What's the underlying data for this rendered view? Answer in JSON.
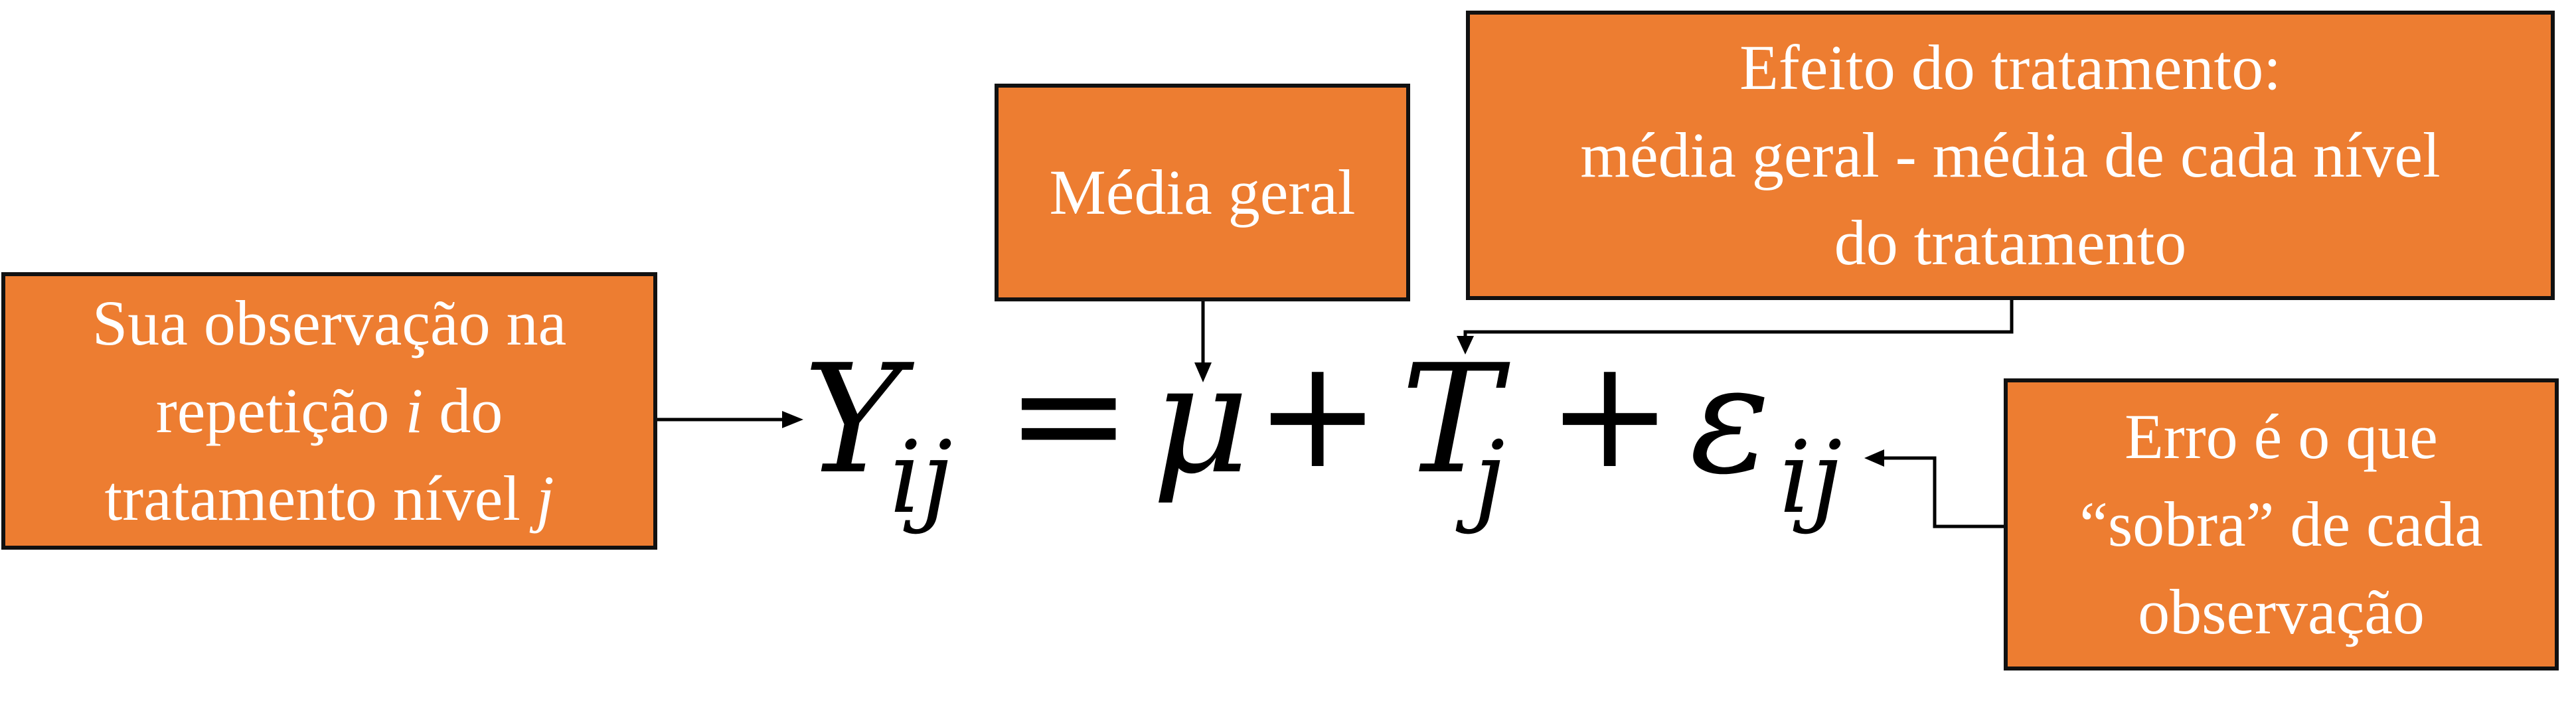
{
  "boxes": {
    "observation": {
      "line1": "Sua observação na",
      "line2_pre": "repetição ",
      "line2_var": "i",
      "line2_post": " do",
      "line3_pre": "tratamento nível ",
      "line3_var": "j"
    },
    "grand_mean": {
      "line1": "Média geral"
    },
    "treatment_effect": {
      "line1": "Efeito do tratamento:",
      "line2": "média geral - média de cada nível",
      "line3": "do tratamento"
    },
    "error": {
      "line1": "Erro é o que",
      "line2": "“sobra” de cada",
      "line3": "observação"
    }
  },
  "equation": {
    "Y": "Y",
    "Y_sub": "ij",
    "equals": "=",
    "mu": "μ",
    "plus1": "+",
    "T": "T",
    "T_sub": "j",
    "plus2": "+",
    "epsilon": "ε",
    "epsilon_sub": "ij"
  },
  "colors": {
    "box_fill": "#ED7D31",
    "box_border": "#111111",
    "box_text": "#FFFFFF",
    "equation_text": "#000000",
    "arrow": "#000000"
  }
}
